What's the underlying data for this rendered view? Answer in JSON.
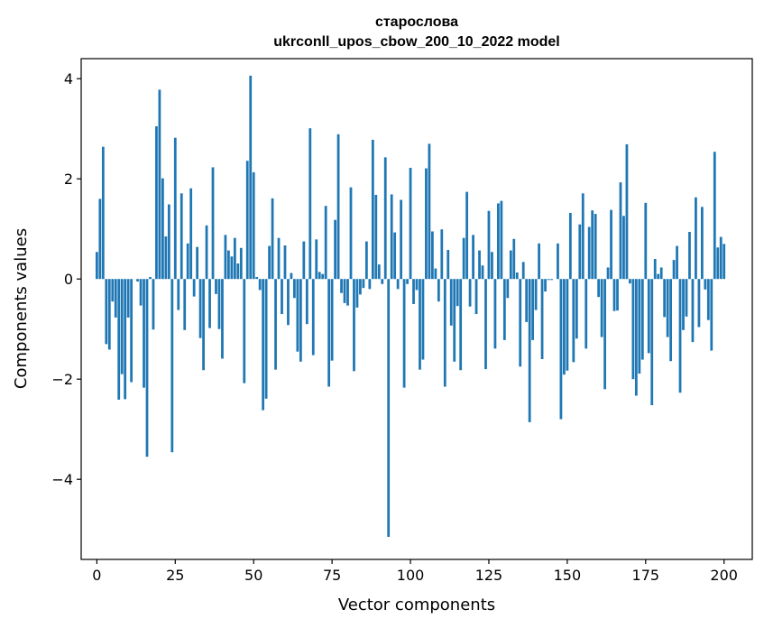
{
  "chart_data": {
    "type": "bar",
    "title_line1": "старослова",
    "title_line2": "ukrconll_upos_cbow_200_10_2022 model",
    "xlabel": "Vector components",
    "ylabel": "Components values",
    "xlim": [
      -5,
      209
    ],
    "ylim": [
      -5.6,
      4.4
    ],
    "xticks": [
      0,
      25,
      50,
      75,
      100,
      125,
      150,
      175,
      200
    ],
    "xtick_labels": [
      "0",
      "25",
      "50",
      "75",
      "100",
      "125",
      "150",
      "175",
      "200"
    ],
    "yticks": [
      -4,
      -2,
      0,
      2,
      4
    ],
    "ytick_labels": [
      "−4",
      "−2",
      "0",
      "2",
      "4"
    ],
    "bar_color": "#1f77b4",
    "values": [
      0.54,
      1.6,
      2.64,
      -1.3,
      -1.41,
      -0.45,
      -0.77,
      -2.41,
      -1.9,
      -2.4,
      -0.77,
      -2.06,
      0.0,
      -0.05,
      -0.53,
      -2.17,
      -3.55,
      0.04,
      -1.01,
      3.05,
      3.78,
      2.01,
      0.85,
      1.49,
      -3.46,
      2.82,
      -0.62,
      1.71,
      -1.02,
      0.71,
      1.81,
      -0.35,
      0.64,
      -1.18,
      -1.82,
      1.07,
      -0.98,
      2.23,
      -0.3,
      -1.0,
      -1.59,
      0.88,
      0.57,
      0.45,
      0.82,
      0.31,
      0.62,
      -2.08,
      2.36,
      4.06,
      2.13,
      0.04,
      -0.22,
      -2.62,
      -2.39,
      0.66,
      1.61,
      -1.81,
      0.82,
      -0.7,
      0.67,
      -0.92,
      0.12,
      -0.38,
      -1.45,
      -1.65,
      0.75,
      -0.9,
      3.01,
      -1.52,
      0.79,
      0.14,
      0.1,
      1.46,
      -2.15,
      -1.63,
      1.18,
      2.89,
      -0.28,
      -0.48,
      -0.53,
      1.83,
      -1.84,
      -0.57,
      -0.31,
      -0.18,
      0.75,
      -0.2,
      2.78,
      1.68,
      0.29,
      -0.1,
      2.43,
      -5.15,
      1.69,
      0.93,
      -0.2,
      1.58,
      -2.17,
      -0.1,
      2.22,
      -0.5,
      -0.22,
      -1.81,
      -1.61,
      2.21,
      2.7,
      0.95,
      0.21,
      -0.45,
      0.99,
      -2.15,
      0.58,
      -0.93,
      -1.65,
      -0.54,
      -1.82,
      0.82,
      1.74,
      -0.55,
      0.88,
      -0.7,
      0.57,
      0.27,
      -1.8,
      1.36,
      0.54,
      -1.39,
      1.51,
      1.56,
      -1.22,
      -0.38,
      0.57,
      0.8,
      0.13,
      -1.75,
      0.34,
      -0.86,
      -2.86,
      -1.22,
      -0.62,
      0.71,
      -1.6,
      -0.25,
      -0.02,
      -0.02,
      0.0,
      0.71,
      -2.8,
      -1.91,
      -1.83,
      1.32,
      -1.66,
      -1.19,
      1.09,
      1.71,
      -1.39,
      1.04,
      1.37,
      1.3,
      -0.36,
      -1.16,
      -2.2,
      0.23,
      1.38,
      -0.64,
      -0.63,
      1.93,
      1.26,
      2.69,
      -0.09,
      -2.0,
      -2.33,
      -1.89,
      -1.61,
      1.52,
      -1.48,
      -2.52,
      0.4,
      0.1,
      0.23,
      -0.76,
      -1.16,
      -1.64,
      0.38,
      0.66,
      -2.27,
      -1.02,
      -0.75,
      0.94,
      -1.26,
      1.63,
      -0.96,
      1.44,
      -0.21,
      -0.82,
      -1.43,
      2.54,
      0.63,
      0.84,
      0.7
    ]
  }
}
